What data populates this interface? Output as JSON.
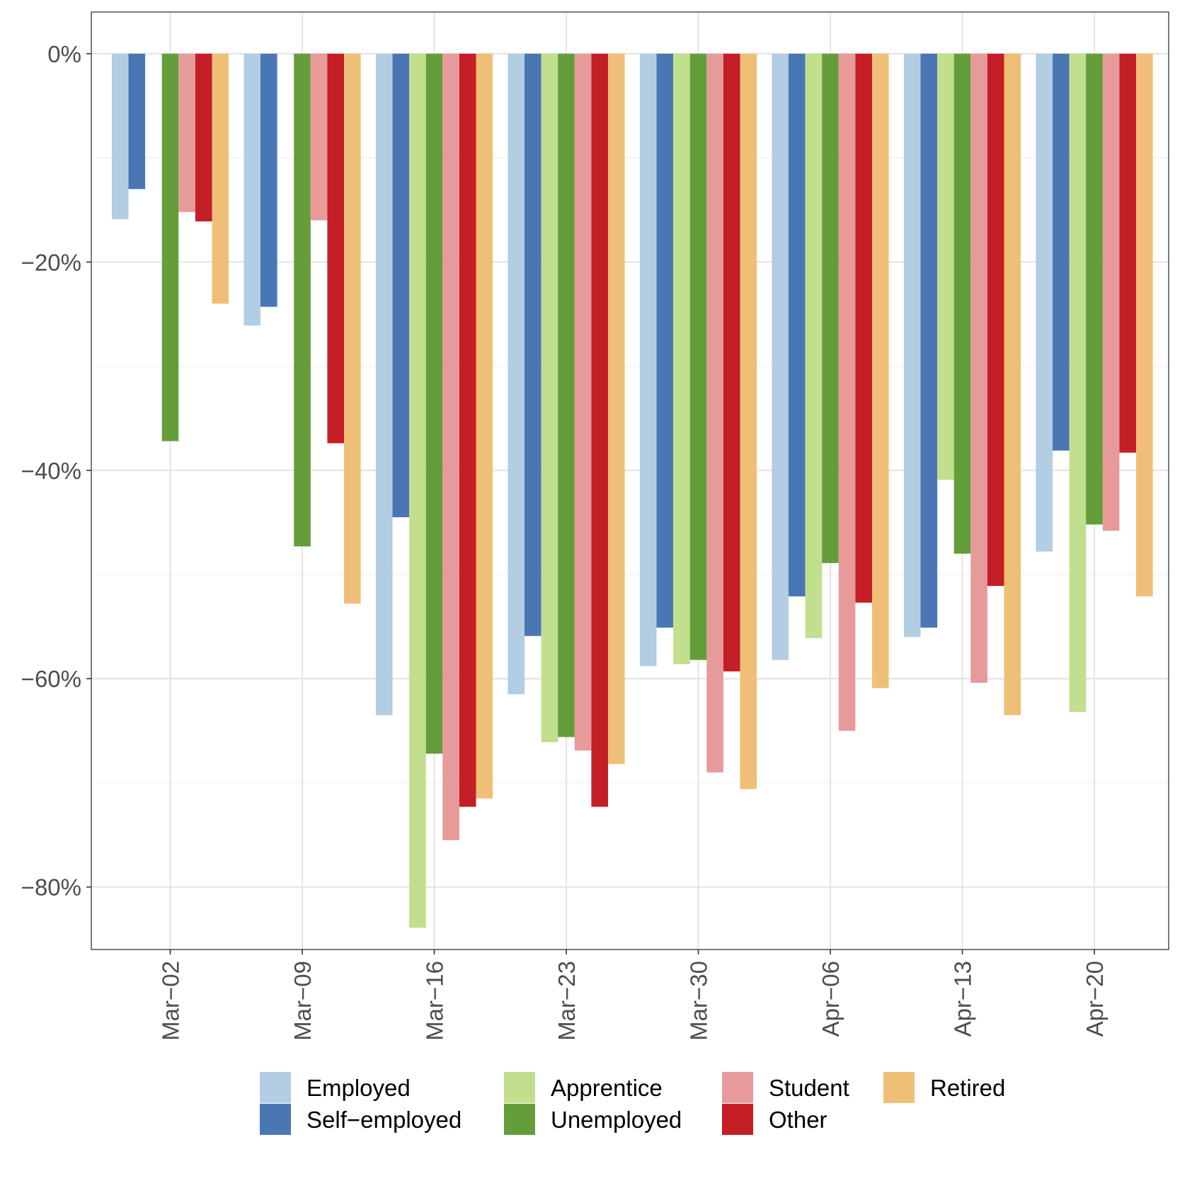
{
  "chart_data": {
    "type": "bar",
    "title": "",
    "xlabel": "",
    "ylabel": "",
    "categories": [
      "Mar−02",
      "Mar−09",
      "Mar−16",
      "Mar−23",
      "Mar−30",
      "Apr−06",
      "Apr−13",
      "Apr−20"
    ],
    "ylim": [
      -86,
      4
    ],
    "yticks": [
      0,
      -20,
      -40,
      -60,
      -80
    ],
    "ytick_labels": [
      "0%",
      "−20%",
      "−40%",
      "−60%",
      "−80%"
    ],
    "grid": true,
    "legend_position": "bottom",
    "series": [
      {
        "name": "Employed",
        "color": "#b3cde3",
        "values": [
          -15.9,
          -26.1,
          -63.5,
          -61.5,
          -58.8,
          -58.2,
          -56.0,
          -47.8
        ]
      },
      {
        "name": "Self−employed",
        "color": "#4a77b4",
        "values": [
          -13.0,
          -24.3,
          -44.5,
          -55.9,
          -55.1,
          -52.1,
          -55.1,
          -38.1
        ]
      },
      {
        "name": "Apprentice",
        "color": "#c1df8d",
        "values": [
          null,
          null,
          -83.9,
          -66.1,
          -58.6,
          -56.1,
          -40.9,
          -63.2
        ]
      },
      {
        "name": "Unemployed",
        "color": "#639e3b",
        "values": [
          -37.2,
          -47.3,
          -67.2,
          -65.6,
          -58.2,
          -48.9,
          -48.0,
          -45.2
        ]
      },
      {
        "name": "Student",
        "color": "#e69a9a",
        "values": [
          -15.2,
          -16.0,
          -75.5,
          -66.9,
          -69.0,
          -65.0,
          -60.4,
          -45.8
        ]
      },
      {
        "name": "Other",
        "color": "#c41f26",
        "values": [
          -16.1,
          -37.4,
          -72.3,
          -72.3,
          -59.3,
          -52.7,
          -51.1,
          -38.3
        ]
      },
      {
        "name": "Retired",
        "color": "#f0bf77",
        "values": [
          -24.0,
          -52.8,
          -71.5,
          -68.2,
          -70.6,
          -60.9,
          -63.5,
          -52.1
        ]
      }
    ],
    "legend": {
      "rows": [
        [
          "Employed",
          "Apprentice",
          "Student",
          "Retired"
        ],
        [
          "Self−employed",
          "Unemployed",
          "Other"
        ]
      ]
    }
  }
}
